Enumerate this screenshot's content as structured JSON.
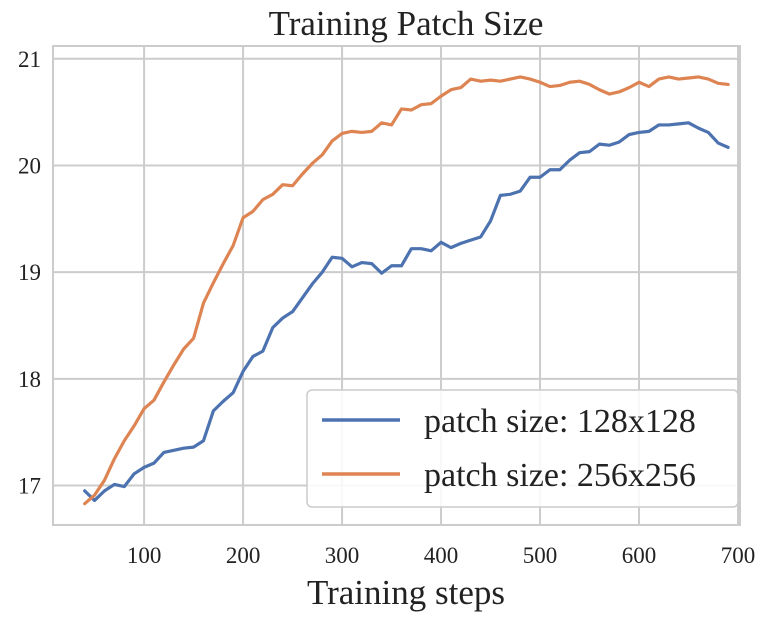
{
  "chart_data": {
    "type": "line",
    "title": "Training Patch Size",
    "xlabel": "Training steps",
    "ylabel": "",
    "xlim": [
      8,
      702
    ],
    "ylim": [
      16.63,
      21.12
    ],
    "xticks": [
      100,
      200,
      300,
      400,
      500,
      600,
      700
    ],
    "yticks": [
      17,
      18,
      19,
      20,
      21
    ],
    "grid": true,
    "legend_position": "bottom-right",
    "colors": {
      "series_1": "#4c72b0",
      "series_2": "#dd8452",
      "grid": "#cccccc",
      "frame": "#cccccc"
    },
    "series": [
      {
        "name": "patch size: 128x128",
        "x": [
          40,
          50,
          60,
          70,
          80,
          90,
          100,
          110,
          120,
          130,
          140,
          150,
          160,
          170,
          180,
          190,
          200,
          210,
          220,
          230,
          240,
          250,
          260,
          270,
          280,
          290,
          300,
          310,
          320,
          330,
          340,
          350,
          360,
          370,
          380,
          390,
          400,
          410,
          420,
          430,
          440,
          450,
          460,
          470,
          480,
          490,
          500,
          510,
          520,
          530,
          540,
          550,
          560,
          570,
          580,
          590,
          600,
          610,
          620,
          630,
          640,
          650,
          660,
          670,
          680,
          690
        ],
        "values": [
          16.95,
          16.86,
          16.95,
          17.01,
          16.99,
          17.11,
          17.17,
          17.21,
          17.31,
          17.33,
          17.35,
          17.36,
          17.42,
          17.7,
          17.79,
          17.87,
          18.07,
          18.21,
          18.26,
          18.48,
          18.57,
          18.63,
          18.76,
          18.89,
          19.0,
          19.14,
          19.13,
          19.05,
          19.09,
          19.08,
          18.99,
          19.06,
          19.06,
          19.22,
          19.22,
          19.2,
          19.28,
          19.23,
          19.27,
          19.3,
          19.33,
          19.48,
          19.72,
          19.73,
          19.76,
          19.89,
          19.89,
          19.96,
          19.96,
          20.05,
          20.12,
          20.13,
          20.2,
          20.19,
          20.22,
          20.29,
          20.31,
          20.32,
          20.38,
          20.38,
          20.39,
          20.4,
          20.35,
          20.31,
          20.21,
          20.17
        ]
      },
      {
        "name": "patch size: 256x256",
        "x": [
          40,
          50,
          60,
          70,
          80,
          90,
          100,
          110,
          120,
          130,
          140,
          150,
          160,
          170,
          180,
          190,
          200,
          210,
          220,
          230,
          240,
          250,
          260,
          270,
          280,
          290,
          300,
          310,
          320,
          330,
          340,
          350,
          360,
          370,
          380,
          390,
          400,
          410,
          420,
          430,
          440,
          450,
          460,
          470,
          480,
          490,
          500,
          510,
          520,
          530,
          540,
          550,
          560,
          570,
          580,
          590,
          600,
          610,
          620,
          630,
          640,
          650,
          660,
          670,
          680,
          690
        ],
        "values": [
          16.83,
          16.91,
          17.05,
          17.25,
          17.42,
          17.56,
          17.72,
          17.8,
          17.97,
          18.13,
          18.28,
          18.38,
          18.71,
          18.9,
          19.08,
          19.25,
          19.51,
          19.57,
          19.68,
          19.73,
          19.82,
          19.81,
          19.92,
          20.02,
          20.1,
          20.23,
          20.3,
          20.32,
          20.31,
          20.32,
          20.4,
          20.38,
          20.53,
          20.52,
          20.57,
          20.58,
          20.65,
          20.71,
          20.73,
          20.81,
          20.79,
          20.8,
          20.79,
          20.81,
          20.83,
          20.81,
          20.78,
          20.74,
          20.75,
          20.78,
          20.79,
          20.76,
          20.71,
          20.67,
          20.69,
          20.73,
          20.78,
          20.74,
          20.81,
          20.83,
          20.81,
          20.82,
          20.83,
          20.81,
          20.77,
          20.76
        ]
      }
    ]
  }
}
